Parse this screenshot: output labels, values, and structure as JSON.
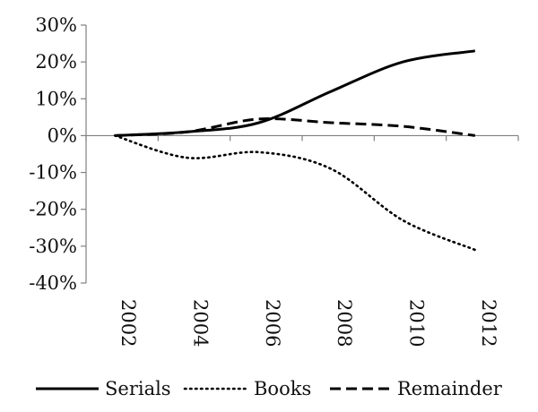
{
  "chart_data": {
    "type": "line",
    "x": [
      2002,
      2004,
      2006,
      2008,
      2010,
      2012
    ],
    "x_tick_labels": [
      "2002",
      "2004",
      "2006",
      "2008",
      "2010",
      "2012"
    ],
    "y_tick_labels": [
      "30%",
      "20%",
      "10%",
      "0%",
      "-10%",
      "-20%",
      "-30%",
      "-40%"
    ],
    "y_ticks": [
      30,
      20,
      10,
      0,
      -10,
      -20,
      -30,
      -40
    ],
    "ylim": [
      -40,
      30
    ],
    "y_unit": "%",
    "grid": false,
    "legend_position": "bottom",
    "title": "",
    "xlabel": "",
    "ylabel": "",
    "series": [
      {
        "name": "Serials",
        "style": "solid",
        "color": "#000000",
        "values": [
          0,
          1,
          3.5,
          12,
          20,
          23
        ]
      },
      {
        "name": "Books",
        "style": "dotted",
        "color": "#000000",
        "values": [
          0,
          -6,
          -4.5,
          -9,
          -23,
          -31
        ]
      },
      {
        "name": "Remainder",
        "style": "dashed",
        "color": "#000000",
        "values": [
          0,
          1,
          4.5,
          3.5,
          2.5,
          0
        ]
      }
    ]
  }
}
